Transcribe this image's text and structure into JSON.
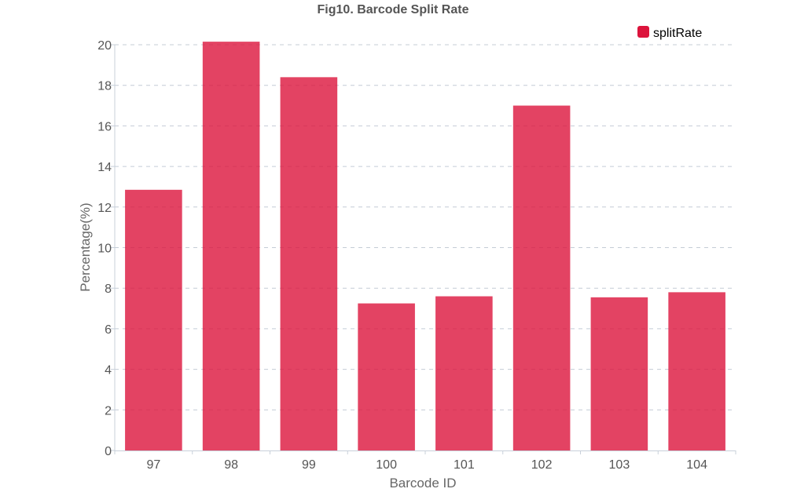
{
  "chart_data": {
    "type": "bar",
    "title": "Fig10. Barcode Split Rate",
    "xlabel": "Barcode ID",
    "ylabel": "Percentage(%)",
    "categories": [
      "97",
      "98",
      "99",
      "100",
      "101",
      "102",
      "103",
      "104"
    ],
    "series": [
      {
        "name": "splitRate",
        "color": "#dc143c",
        "values": [
          12.85,
          20.15,
          18.4,
          7.25,
          7.6,
          17.0,
          7.55,
          7.8
        ]
      }
    ],
    "ylim": [
      0,
      20
    ],
    "yticks": [
      "0",
      "2",
      "4",
      "6",
      "8",
      "10",
      "12",
      "14",
      "16",
      "18",
      "20"
    ],
    "grid": true,
    "legend_position": "top-right"
  }
}
